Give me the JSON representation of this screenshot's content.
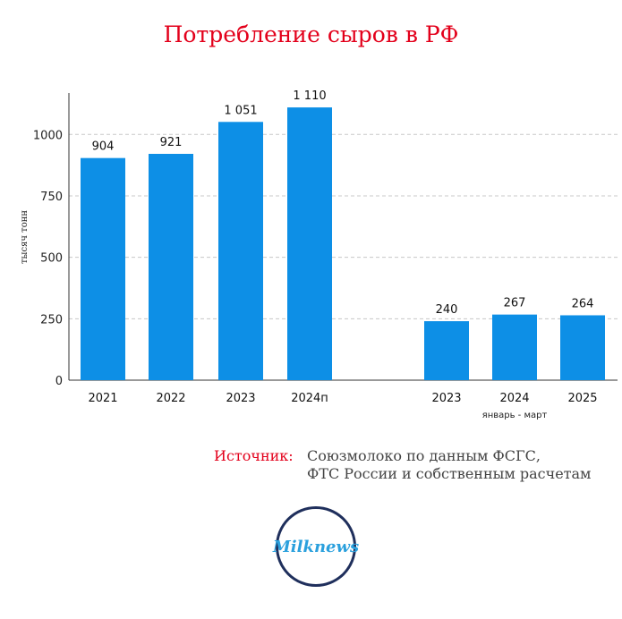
{
  "title": "Потребление сыров в РФ",
  "chart_data": {
    "type": "bar",
    "ylabel": "тысяч тонн",
    "ylim": [
      0,
      1150
    ],
    "yticks": [
      0,
      250,
      500,
      750,
      1000
    ],
    "grid": true,
    "bar_color": "#0d8fe6",
    "groups": [
      {
        "categories": [
          "2021",
          "2022",
          "2023",
          "2024п"
        ],
        "values": [
          904,
          921,
          1051,
          1110
        ],
        "value_labels": [
          "904",
          "921",
          "1 051",
          "1 110"
        ],
        "group_label": ""
      },
      {
        "categories": [
          "2023",
          "2024",
          "2025"
        ],
        "values": [
          240,
          267,
          264
        ],
        "value_labels": [
          "240",
          "267",
          "264"
        ],
        "group_label": "январь - март"
      }
    ]
  },
  "source": {
    "label": "Источник:",
    "line1": "Союзмолоко по данным ФСГС,",
    "line2": "ФТС России и собственным расчетам"
  },
  "logo": {
    "text": "Milknews",
    "ring_color": "#1f2f5c",
    "text_color": "#2aa0dd"
  },
  "colors": {
    "title": "#e3001b",
    "bar": "#0d8fe6"
  }
}
